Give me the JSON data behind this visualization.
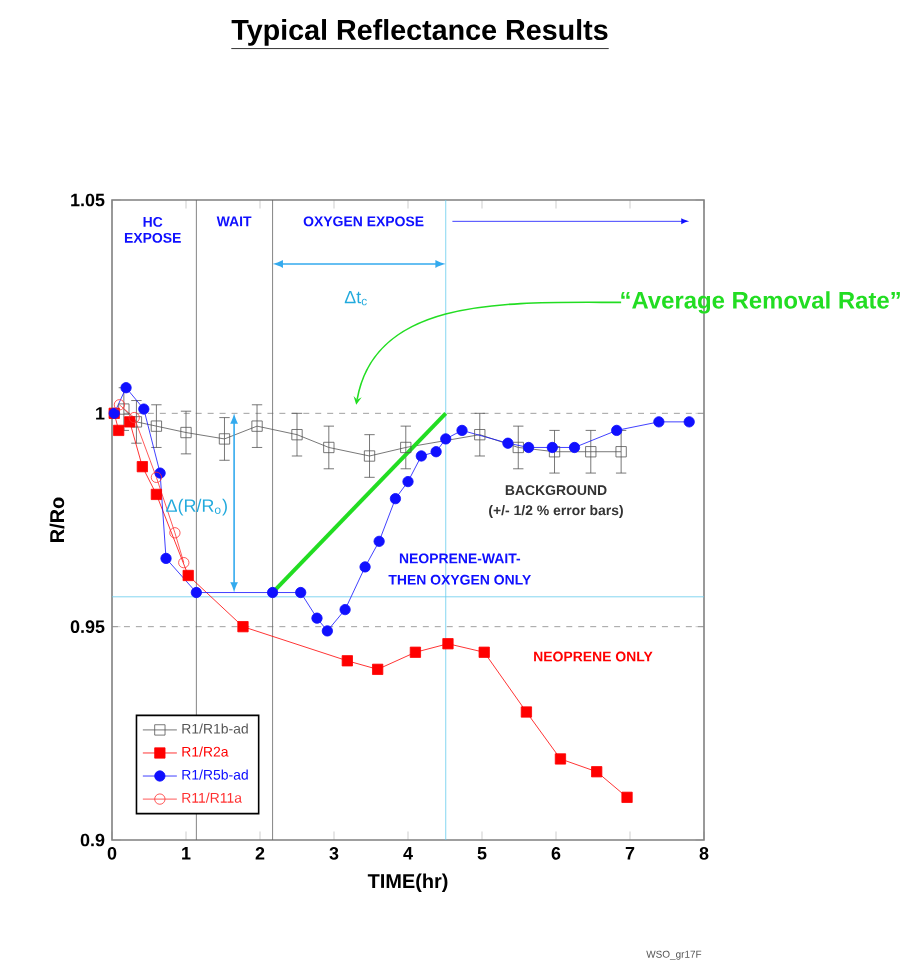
{
  "chart_data": {
    "type": "line",
    "title": "Typical Reflectance Results",
    "xlabel": "TIME(hr)",
    "ylabel": "R/Ro",
    "xlim": [
      0,
      8
    ],
    "ylim": [
      0.9,
      1.05
    ],
    "xticks": [
      0,
      1,
      2,
      3,
      4,
      5,
      6,
      7,
      8
    ],
    "yticks": [
      0.9,
      0.95,
      1,
      1.05
    ],
    "legend": "bottom left",
    "line_style": "solid",
    "series": [
      {
        "name": "R1/R1b-ad",
        "color": "#555555",
        "marker": "square",
        "x": [
          0.16,
          0.33,
          0.6,
          1.0,
          1.52,
          1.96,
          2.5,
          2.93,
          3.48,
          3.97,
          4.97,
          5.49,
          5.98,
          6.47,
          6.88
        ],
        "values": [
          1.001,
          0.998,
          0.997,
          0.9955,
          0.994,
          0.997,
          0.995,
          0.992,
          0.99,
          0.992,
          0.995,
          0.992,
          0.991,
          0.991,
          0.991
        ],
        "errors": [
          0.005,
          0.005,
          0.005,
          0.005,
          0.005,
          0.005,
          0.005,
          0.005,
          0.005,
          0.005,
          0.005,
          0.005,
          0.005,
          0.005,
          0.005
        ]
      },
      {
        "name": "R1/R2a",
        "color": "#ff0000",
        "marker": "square",
        "x": [
          0.03,
          0.09,
          0.24,
          0.41,
          0.6,
          1.03,
          1.77,
          3.18,
          3.59,
          4.1,
          4.54,
          5.03,
          5.6,
          6.06,
          6.55,
          6.96
        ],
        "values": [
          1.0,
          0.996,
          0.998,
          0.9875,
          0.981,
          0.962,
          0.95,
          0.942,
          0.94,
          0.944,
          0.946,
          0.944,
          0.93,
          0.919,
          0.916,
          0.91
        ]
      },
      {
        "name": "R1/R5b-ad",
        "color": "#1010ff",
        "marker": "circle",
        "x": [
          0.03,
          0.19,
          0.43,
          0.65,
          0.73,
          1.14,
          2.17,
          2.55,
          2.77,
          2.91,
          3.15,
          3.42,
          3.61,
          3.83,
          4.0,
          4.18,
          4.38,
          4.51,
          4.73,
          5.35,
          5.63,
          5.95,
          6.25,
          6.82,
          7.39,
          7.8
        ],
        "values": [
          1.0,
          1.006,
          1.001,
          0.986,
          0.966,
          0.958,
          0.958,
          0.958,
          0.952,
          0.949,
          0.954,
          0.964,
          0.97,
          0.98,
          0.984,
          0.99,
          0.991,
          0.994,
          0.996,
          0.993,
          0.992,
          0.992,
          0.992,
          0.996,
          0.998,
          0.998
        ]
      },
      {
        "name": "R11/R11a",
        "color": "#ff3030",
        "marker": "circle",
        "x": [
          0.1,
          0.3,
          0.6,
          0.85,
          0.97
        ],
        "values": [
          1.002,
          0.999,
          0.985,
          0.972,
          0.965
        ]
      },
      {
        "type": "line",
        "color": "#22dd22",
        "marker": "none",
        "x": [
          2.17,
          4.51
        ],
        "values": [
          0.958,
          1.0
        ]
      }
    ],
    "ref_lines": [
      {
        "axis": "y",
        "value": 1,
        "color": "#888888",
        "line_style": "dashed"
      },
      {
        "axis": "y",
        "value": 0.95,
        "color": "#888888",
        "line_style": "dashed"
      },
      {
        "axis": "y",
        "value": 0.957,
        "color": "#66ccee",
        "line_style": "solid"
      },
      {
        "axis": "x",
        "value": 1.14,
        "color": "#666666",
        "line_style": "solid"
      },
      {
        "axis": "x",
        "value": 2.17,
        "color": "#666666",
        "line_style": "solid"
      },
      {
        "axis": "x",
        "value": 4.51,
        "color": "#66ccee",
        "line_style": "solid"
      }
    ],
    "annotations": [
      "HC EXPOSE",
      "WAIT",
      "OXYGEN EXPOSE",
      "Δt$_{c}$",
      "Δ(R/R$_{o}$)",
      "BACKGROUND",
      "(+/- 1/2 % error bars)",
      "NEOPRENE-WAIT-",
      "THEN OXYGEN ONLY",
      "NEOPRENE ONLY",
      "“Average Removal Rate”",
      "WSO_gr17F"
    ]
  }
}
